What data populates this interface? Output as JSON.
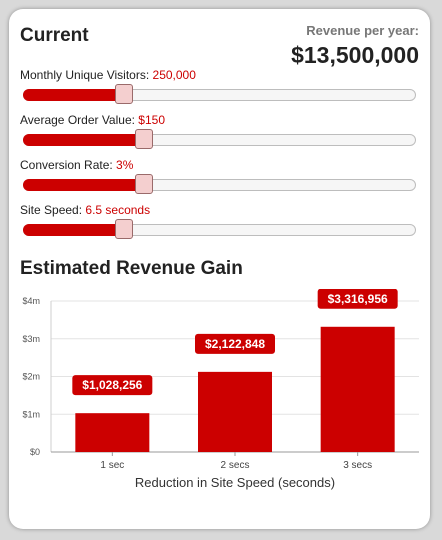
{
  "current": {
    "title": "Current",
    "revenue_label": "Revenue per year:",
    "revenue_value": "$13,500,000"
  },
  "controls": [
    {
      "label": "Monthly Unique Visitors: ",
      "value": "250,000",
      "fraction": 0.255
    },
    {
      "label": "Average Order Value: ",
      "value": "$150",
      "fraction": 0.305
    },
    {
      "label": "Conversion Rate: ",
      "value": "3%",
      "fraction": 0.305
    },
    {
      "label": "Site Speed: ",
      "value": "6.5 seconds",
      "fraction": 0.255
    }
  ],
  "gain": {
    "title": "Estimated Revenue Gain"
  },
  "colors": {
    "accent": "#cc0000",
    "thumb": "#f4cfcf"
  },
  "chart_data": {
    "type": "bar",
    "categories": [
      "1 sec",
      "2 secs",
      "3 secs"
    ],
    "values": [
      1028256,
      2122848,
      3316956
    ],
    "data_labels": [
      "$1,028,256",
      "$2,122,848",
      "$3,316,956"
    ],
    "title": "Estimated Revenue Gain",
    "xlabel": "Reduction in Site Speed (seconds)",
    "ylabel": "",
    "ylim": [
      0,
      4000000
    ],
    "y_ticks": [
      0,
      1000000,
      2000000,
      3000000,
      4000000
    ],
    "y_tick_labels": [
      "$0",
      "$1m",
      "$2m",
      "$3m",
      "$4m"
    ],
    "grid": true,
    "legend": "none"
  }
}
